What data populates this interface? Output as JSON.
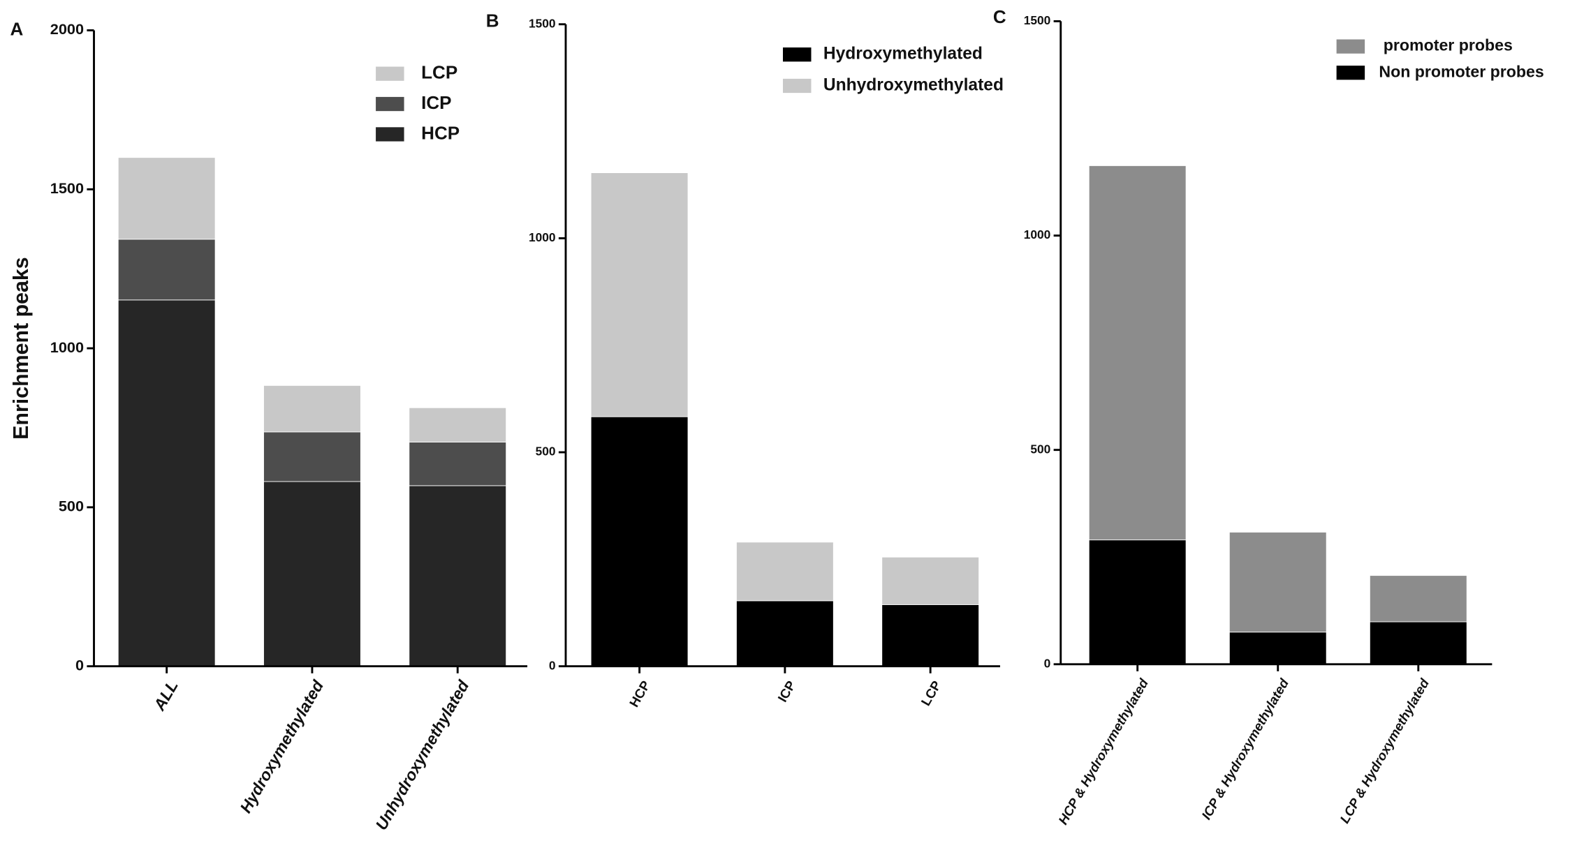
{
  "chart_data": [
    {
      "type": "bar",
      "stacked": true,
      "panel": "A",
      "ylabel": "Enrichment peaks",
      "categories": [
        "ALL",
        "Hydroxymethylated",
        "Unhydroxymethylated"
      ],
      "series": [
        {
          "name": "HCP",
          "color": "#262626",
          "values": [
            1152,
            581,
            568
          ]
        },
        {
          "name": "ICP",
          "color": "#4d4d4d",
          "values": [
            191,
            156,
            137
          ]
        },
        {
          "name": "LCP",
          "color": "#c8c8c8",
          "values": [
            257,
            146,
            108
          ]
        }
      ],
      "legend_reversed": true,
      "ylim": [
        0,
        2000
      ],
      "yticks": [
        0,
        500,
        1000,
        1500,
        2000
      ]
    },
    {
      "type": "bar",
      "stacked": true,
      "panel": "B",
      "categories": [
        "HCP",
        "ICP",
        "LCP"
      ],
      "series": [
        {
          "name": "Hydroxymethylated",
          "color": "#000000",
          "values": [
            583,
            153,
            144
          ]
        },
        {
          "name": "Unhydroxymethylated",
          "color": "#c8c8c8",
          "values": [
            570,
            137,
            111
          ]
        }
      ],
      "legend_reversed": false,
      "ylim": [
        0,
        1500
      ],
      "yticks": [
        0,
        500,
        1000,
        1500
      ]
    },
    {
      "type": "bar",
      "stacked": true,
      "panel": "C",
      "categories": [
        "HCP & Hydroxymethylated",
        "ICP & Hydroxymethylated",
        "LCP & Hydroxymethylated"
      ],
      "series": [
        {
          "name": "Non promoter probes",
          "color": "#000000",
          "values": [
            290,
            75,
            99
          ]
        },
        {
          "name": " promoter probes",
          "color": "#8c8c8c",
          "values": [
            873,
            233,
            108
          ]
        }
      ],
      "legend_reversed": true,
      "ylim": [
        0,
        1500
      ],
      "yticks": [
        0,
        500,
        1000,
        1500
      ]
    }
  ]
}
